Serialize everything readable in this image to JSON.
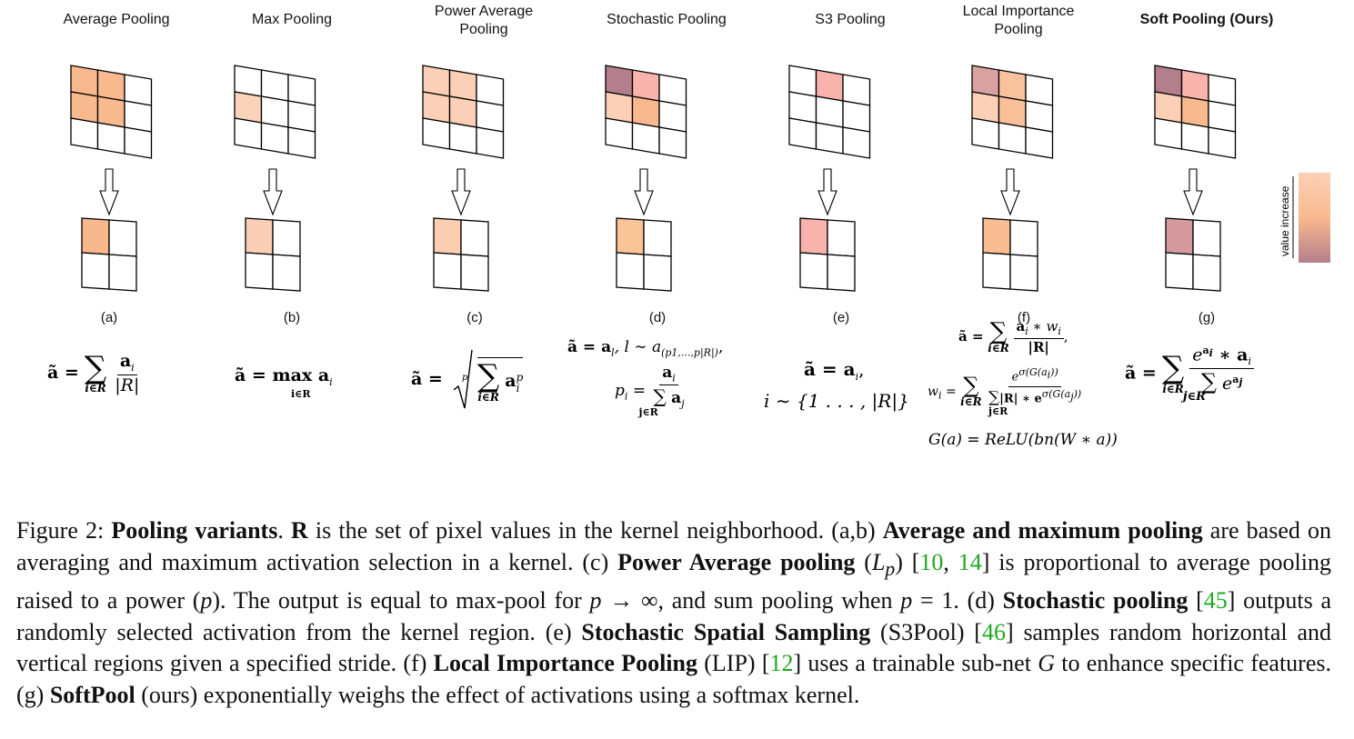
{
  "panels": [
    {
      "id": "a",
      "title": "Average Pooling",
      "label": "(a)",
      "bold": false,
      "in": [
        "#f9b98e",
        "#f9b98e",
        null,
        "#f9b98e",
        "#f9b98e",
        null,
        null,
        null,
        null
      ],
      "out": "#f8b78c"
    },
    {
      "id": "b",
      "title": "Max Pooling",
      "label": "(b)",
      "bold": false,
      "in": [
        null,
        null,
        null,
        "#fbd3bb",
        null,
        null,
        null,
        null,
        null
      ],
      "out": "#fbcfb5"
    },
    {
      "id": "c",
      "title": "Power Average Pooling",
      "label": "(c)",
      "bold": false,
      "in": [
        "#fcd0b6",
        "#fcd0b6",
        null,
        "#fcd0b6",
        "#fcd0b6",
        null,
        null,
        null,
        null
      ],
      "out": "#fbcdb1"
    },
    {
      "id": "d",
      "title": "Stochastic Pooling",
      "label": "(d)",
      "bold": false,
      "in": [
        "#b47f8c",
        "#f8b3ad",
        null,
        "#fcd0b6",
        "#f9b98e",
        null,
        null,
        null,
        null
      ],
      "out": "#f9c497"
    },
    {
      "id": "e",
      "title": "S3 Pooling",
      "label": "(e)",
      "bold": false,
      "in": [
        null,
        "#f8b3ad",
        null,
        null,
        null,
        null,
        null,
        null,
        null
      ],
      "out": "#f8b3ad"
    },
    {
      "id": "f",
      "title": "Local Importance Pooling",
      "label": "(f)",
      "bold": false,
      "in": [
        "#d9a2a0",
        "#f9c29e",
        null,
        "#fcd0b6",
        "#f9c09a",
        null,
        null,
        null,
        null
      ],
      "out": "#f9bd94"
    },
    {
      "id": "g",
      "title": "Soft Pooling (Ours)",
      "label": "(g)",
      "bold": true,
      "in": [
        "#b47f8c",
        "#f8b3ad",
        null,
        "#fcd0b6",
        "#f9b98e",
        null,
        null,
        null,
        null
      ],
      "out": "#d59a9e"
    }
  ],
  "colorbar_label": "value increase",
  "colorbar_colors": [
    "#fcd0b6",
    "#f9b98e",
    "#b47f8c"
  ],
  "equations": {
    "a_lhs": "ã =",
    "a_num": "a",
    "a_num_sub": "i",
    "a_den": "|R|",
    "a_lim": "i∈R",
    "b_text": "ã = max a",
    "b_sub": "i",
    "b_lim": "i∈R",
    "c_lhs": "ã =",
    "c_root_idx": "p",
    "c_body": "a",
    "c_sup": "p",
    "c_sub": "i",
    "c_lim": "i∈R",
    "d_line1": "ã = a",
    "d_line1_sub": "l",
    "d_line1_rest": ",  l ∼ a",
    "d_line1_sub2": "(p1,...,p|R|)",
    "d_line1_end": ",",
    "d_pi": "p",
    "d_pi_sub": "i",
    "d_eq": "=",
    "d_num": "a",
    "d_num_sub": "i",
    "d_den": "a",
    "d_den_sub": "j",
    "d_lim": "j∈R",
    "e_line1": "ã = a",
    "e_line1_sub": "i",
    "e_line1_end": ",",
    "e_line2": "i ∼ {1 . . . , |R|}",
    "f_line1_lhs": "ã =",
    "f_num": "a",
    "f_num_sub": "i",
    "f_num_rest": " ∗ w",
    "f_num_sub2": "i",
    "f_den": "|R|",
    "f_line1_end": ",",
    "f_lim": "i∈R",
    "f_w": "w",
    "f_w_sub": "i",
    "f_w_eq": "=",
    "f_w_num": "e",
    "f_w_num_sup": "σ(G(a",
    "f_w_num_sup_sub": "i",
    "f_w_num_sup_end": "))",
    "f_w_den": "|R| ∗ e",
    "f_w_den_sup": "σ(G(a",
    "f_w_den_sup_sub": "j",
    "f_w_den_sup_end": "))",
    "f_w_den_lim": "j∈R",
    "f_line3": "G(a) = ReLU(bn(W ∗ a))",
    "g_lhs": "ã =",
    "g_num_e": "e",
    "g_num_sup": "a",
    "g_num_sup_sub": "i",
    "g_num_rest": " ∗ a",
    "g_num_sub": "i",
    "g_den_e": "e",
    "g_den_sup": "a",
    "g_den_sup_sub": "j",
    "g_lim": "i∈R",
    "g_den_lim": "j∈R"
  },
  "caption": {
    "t01": "Figure 2: ",
    "t02": "Pooling variants",
    "t03": ". ",
    "t04": "R",
    "t05": " is the set of pixel values in the kernel neighborhood. (a,b) ",
    "t06": "Average and maximum pooling",
    "t07": " are based on averaging and maximum activation selection in a kernel. (c) ",
    "t08": "Power Average pooling",
    "t09": " (",
    "t10": "L",
    "t11": "p",
    "t12": ") [",
    "ref1": "10",
    "t13": ", ",
    "ref2": "14",
    "t14": "] is proportional to average pooling raised to a power (",
    "t15": "p",
    "t16": "). The output is equal to max-pool for ",
    "t17": "p",
    "t18": " → ∞, and sum pooling when ",
    "t19": "p",
    "t20": " = 1. (d) ",
    "t21": "Stochastic pooling",
    "t22": " [",
    "ref3": "45",
    "t23": "] outputs a randomly selected activation from the kernel region. (e) ",
    "t24": "Stochastic Spatial Sampling",
    "t25": " (S3Pool) [",
    "ref4": "46",
    "t26": "] samples random horizontal and vertical regions given a specified stride. (f) ",
    "t27": "Local Importance Pooling",
    "t28": " (LIP) [",
    "ref5": "12",
    "t29": "] uses a trainable sub-net ",
    "t30": "G",
    "t31": " to enhance specific features. (g) ",
    "t32": "SoftPool",
    "t33": " (ours) exponentially weighs the effect of activations using a softmax kernel."
  }
}
